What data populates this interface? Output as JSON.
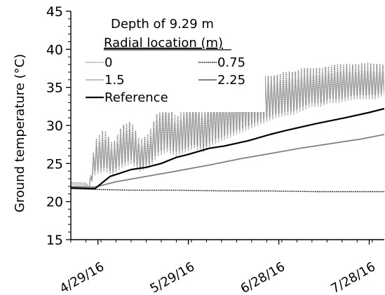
{
  "chart_data": {
    "type": "line",
    "title": "",
    "xlabel": "",
    "ylabel": "Ground temperature (°C)",
    "ylim": [
      15,
      45
    ],
    "yticks": [
      "15",
      "20",
      "25",
      "30",
      "35",
      "40",
      "45"
    ],
    "xlim": [
      "2016-04-20",
      "2016-08-02"
    ],
    "xticks": [
      {
        "label": "4/29/16",
        "date": "2016-04-29"
      },
      {
        "label": "5/29/16",
        "date": "2016-05-29"
      },
      {
        "label": "6/28/16",
        "date": "2016-06-28"
      },
      {
        "label": "7/28/16",
        "date": "2016-07-28"
      }
    ],
    "grid": false,
    "legend": {
      "title_line1": "Depth of 9.29 m",
      "title_line2": "Radial location (m)",
      "placement": "top-center",
      "entries": [
        "0",
        "0.75",
        "1.5",
        "2.25",
        "Reference"
      ]
    },
    "series": [
      {
        "name": "0",
        "color": "#8c8c8c",
        "style": "dotted",
        "daily_oscillation": true,
        "x": [
          "2016-04-20",
          "2016-04-25",
          "2016-04-26",
          "2016-04-28",
          "2016-05-01",
          "2016-05-04",
          "2016-05-07",
          "2016-05-10",
          "2016-05-13",
          "2016-05-16",
          "2016-05-19",
          "2016-05-22",
          "2016-05-25",
          "2016-05-28",
          "2016-05-31",
          "2016-06-03",
          "2016-06-06",
          "2016-06-09",
          "2016-06-12",
          "2016-06-15",
          "2016-06-18",
          "2016-06-21",
          "2016-06-24",
          "2016-06-27",
          "2016-06-30",
          "2016-07-03",
          "2016-07-06",
          "2016-07-09",
          "2016-07-12",
          "2016-07-15",
          "2016-07-18",
          "2016-07-21",
          "2016-07-24",
          "2016-07-27",
          "2016-07-30",
          "2016-08-02"
        ],
        "low": [
          22.5,
          22.4,
          21.8,
          24.0,
          24.5,
          24.0,
          25.0,
          25.5,
          24.5,
          25.0,
          26.5,
          27.0,
          26.5,
          27.0,
          27.5,
          27.0,
          28.0,
          28.5,
          29.0,
          29.5,
          30.0,
          30.5,
          31.0,
          31.5,
          31.8,
          32.0,
          32.5,
          33.0,
          33.0,
          33.5,
          33.5,
          33.8,
          34.0,
          34.0,
          34.0,
          34.5
        ],
        "high": [
          22.5,
          22.4,
          21.8,
          28.0,
          29.5,
          27.5,
          30.0,
          30.5,
          28.0,
          29.0,
          32.0,
          33.0,
          31.0,
          32.5,
          33.5,
          32.0,
          34.0,
          34.5,
          34.5,
          35.0,
          35.5,
          36.0,
          36.5,
          36.5,
          37.0,
          37.0,
          37.5,
          37.5,
          37.5,
          37.8,
          38.0,
          38.0,
          38.0,
          38.2,
          38.0,
          38.0
        ]
      },
      {
        "name": "0.75",
        "color": "#000000",
        "style": "dotted",
        "x": [
          "2016-04-20",
          "2016-04-28",
          "2016-05-10",
          "2016-05-25",
          "2016-06-10",
          "2016-06-25",
          "2016-07-10",
          "2016-07-25",
          "2016-08-02"
        ],
        "y": [
          21.7,
          21.6,
          21.5,
          21.5,
          21.4,
          21.4,
          21.3,
          21.3,
          21.3
        ]
      },
      {
        "name": "1.5",
        "color": "#c0c0c0",
        "style": "solid",
        "daily_oscillation": true,
        "x": [
          "2016-04-20",
          "2016-04-25",
          "2016-04-26",
          "2016-04-28",
          "2016-05-01",
          "2016-05-04",
          "2016-05-07",
          "2016-05-10",
          "2016-05-13",
          "2016-05-16",
          "2016-05-19",
          "2016-05-22",
          "2016-05-25",
          "2016-05-28",
          "2016-05-31",
          "2016-06-03",
          "2016-06-06",
          "2016-06-09",
          "2016-06-12",
          "2016-06-15",
          "2016-06-18",
          "2016-06-21",
          "2016-06-24",
          "2016-06-27",
          "2016-06-30",
          "2016-07-03",
          "2016-07-06",
          "2016-07-09",
          "2016-07-12",
          "2016-07-15",
          "2016-07-18",
          "2016-07-21",
          "2016-07-24",
          "2016-07-27",
          "2016-07-30",
          "2016-08-02"
        ],
        "low": [
          22.3,
          22.2,
          21.8,
          23.5,
          24.0,
          23.5,
          24.5,
          25.0,
          24.0,
          24.5,
          26.0,
          26.5,
          26.0,
          26.5,
          27.0,
          26.5,
          27.5,
          28.0,
          28.5,
          29.0,
          29.5,
          30.0,
          30.5,
          31.0,
          31.3,
          31.5,
          32.0,
          32.5,
          32.5,
          33.0,
          33.0,
          33.3,
          33.5,
          33.5,
          33.5,
          34.0
        ],
        "high": [
          22.3,
          22.2,
          21.8,
          27.0,
          28.5,
          26.5,
          29.0,
          29.5,
          27.0,
          28.0,
          31.0,
          31.8,
          30.0,
          31.5,
          32.5,
          31.0,
          33.0,
          33.5,
          33.5,
          34.0,
          34.5,
          35.0,
          35.5,
          35.5,
          36.0,
          36.0,
          36.3,
          36.5,
          36.5,
          36.8,
          37.0,
          37.0,
          37.0,
          37.2,
          37.0,
          37.0
        ]
      },
      {
        "name": "2.25",
        "color": "#7f7f7f",
        "style": "solid",
        "x": [
          "2016-04-20",
          "2016-04-28",
          "2016-05-05",
          "2016-05-15",
          "2016-05-25",
          "2016-06-05",
          "2016-06-15",
          "2016-06-25",
          "2016-07-05",
          "2016-07-15",
          "2016-07-25",
          "2016-08-02"
        ],
        "y": [
          22.0,
          21.9,
          22.6,
          23.3,
          24.0,
          24.8,
          25.6,
          26.3,
          27.0,
          27.6,
          28.2,
          28.8
        ]
      },
      {
        "name": "Reference",
        "color": "#000000",
        "style": "solid",
        "x": [
          "2016-04-20",
          "2016-04-28",
          "2016-05-03",
          "2016-05-10",
          "2016-05-15",
          "2016-05-20",
          "2016-05-25",
          "2016-05-29",
          "2016-06-05",
          "2016-06-10",
          "2016-06-18",
          "2016-06-25",
          "2016-06-30",
          "2016-07-10",
          "2016-07-20",
          "2016-07-28",
          "2016-08-02"
        ],
        "y": [
          21.8,
          21.7,
          23.3,
          24.2,
          24.5,
          25.0,
          25.8,
          26.2,
          27.0,
          27.3,
          28.0,
          28.8,
          29.3,
          30.2,
          31.0,
          31.7,
          32.2
        ]
      }
    ]
  }
}
